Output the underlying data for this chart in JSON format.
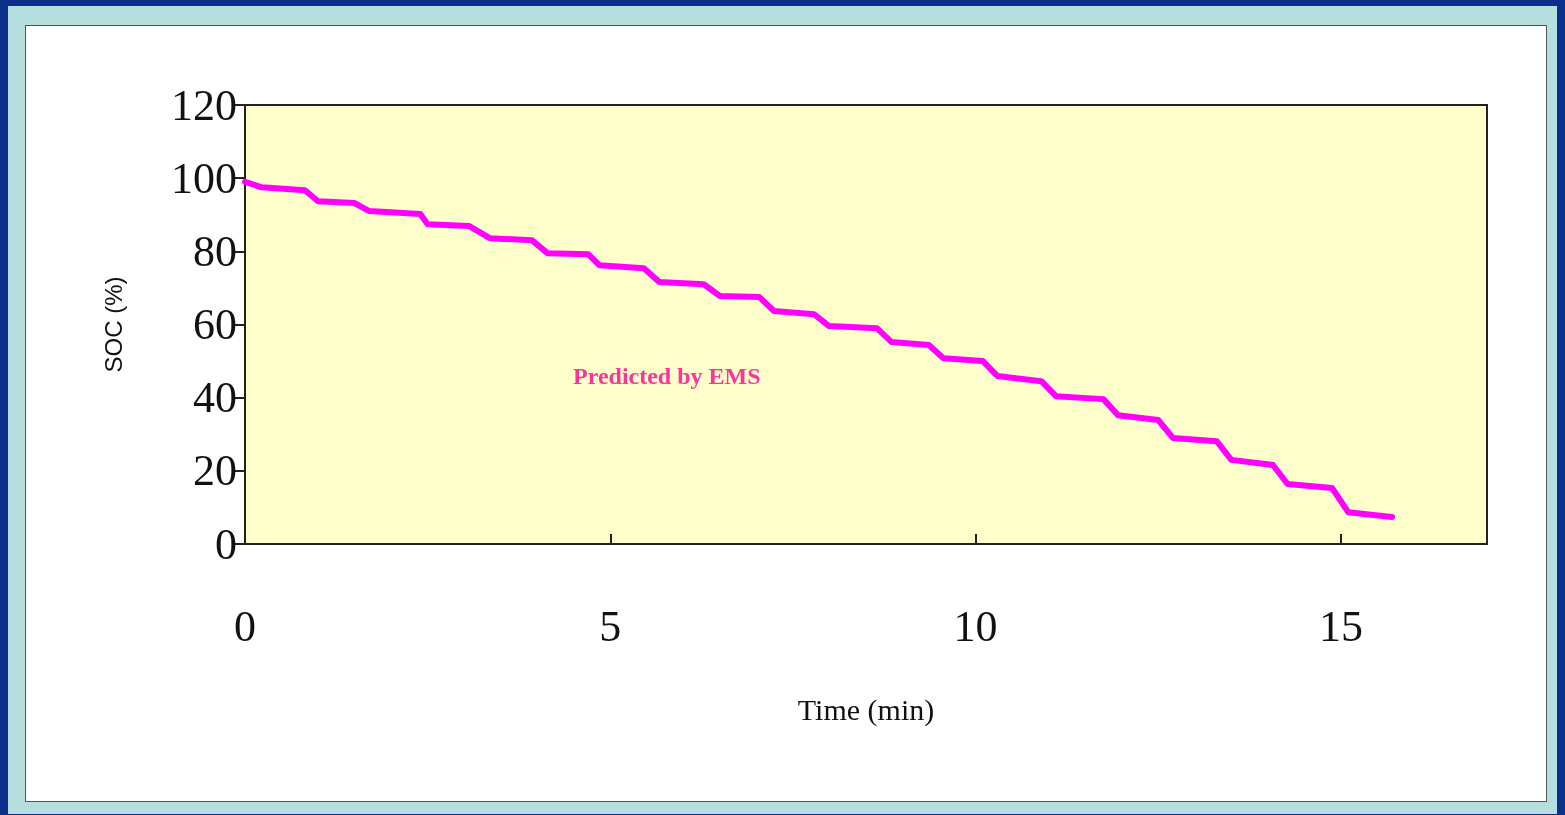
{
  "chart_data": {
    "type": "line",
    "xlabel": "Time (min)",
    "ylabel": "SOC (%)",
    "annotations": [
      "Predicted by EMS"
    ],
    "x": [
      0,
      0.23,
      0.82,
      1.0,
      1.5,
      1.7,
      2.4,
      2.5,
      3.07,
      3.35,
      3.93,
      4.14,
      4.7,
      4.85,
      5.46,
      5.67,
      6.28,
      6.5,
      7.04,
      7.24,
      7.79,
      7.99,
      8.65,
      8.85,
      9.36,
      9.56,
      10.1,
      10.3,
      10.9,
      11.1,
      11.75,
      11.95,
      12.5,
      12.7,
      13.3,
      13.5,
      14.07,
      14.27,
      14.88,
      15.1,
      15.7
    ],
    "series": [
      {
        "color": "#ff00ff",
        "values": [
          99,
          97.5,
          96.7,
          93.7,
          93.2,
          91,
          90.2,
          87.4,
          86.9,
          83.6,
          83,
          79.5,
          79.2,
          76.2,
          75.4,
          71.6,
          71,
          67.8,
          67.5,
          63.7,
          62.8,
          59.6,
          59,
          55.2,
          54.4,
          50.8,
          50,
          45.9,
          44.5,
          40.4,
          39.6,
          35.2,
          33.9,
          29,
          28.1,
          23,
          21.6,
          16.4,
          15.3,
          8.7,
          7.4
        ]
      }
    ],
    "xlim": [
      0,
      17
    ],
    "xticks": [
      0,
      5,
      10,
      15
    ],
    "ylim": [
      0,
      120
    ],
    "yticks": [
      0,
      20,
      40,
      60,
      80,
      100,
      120
    ],
    "grid": false,
    "marker": "none",
    "line_style": "solid"
  }
}
